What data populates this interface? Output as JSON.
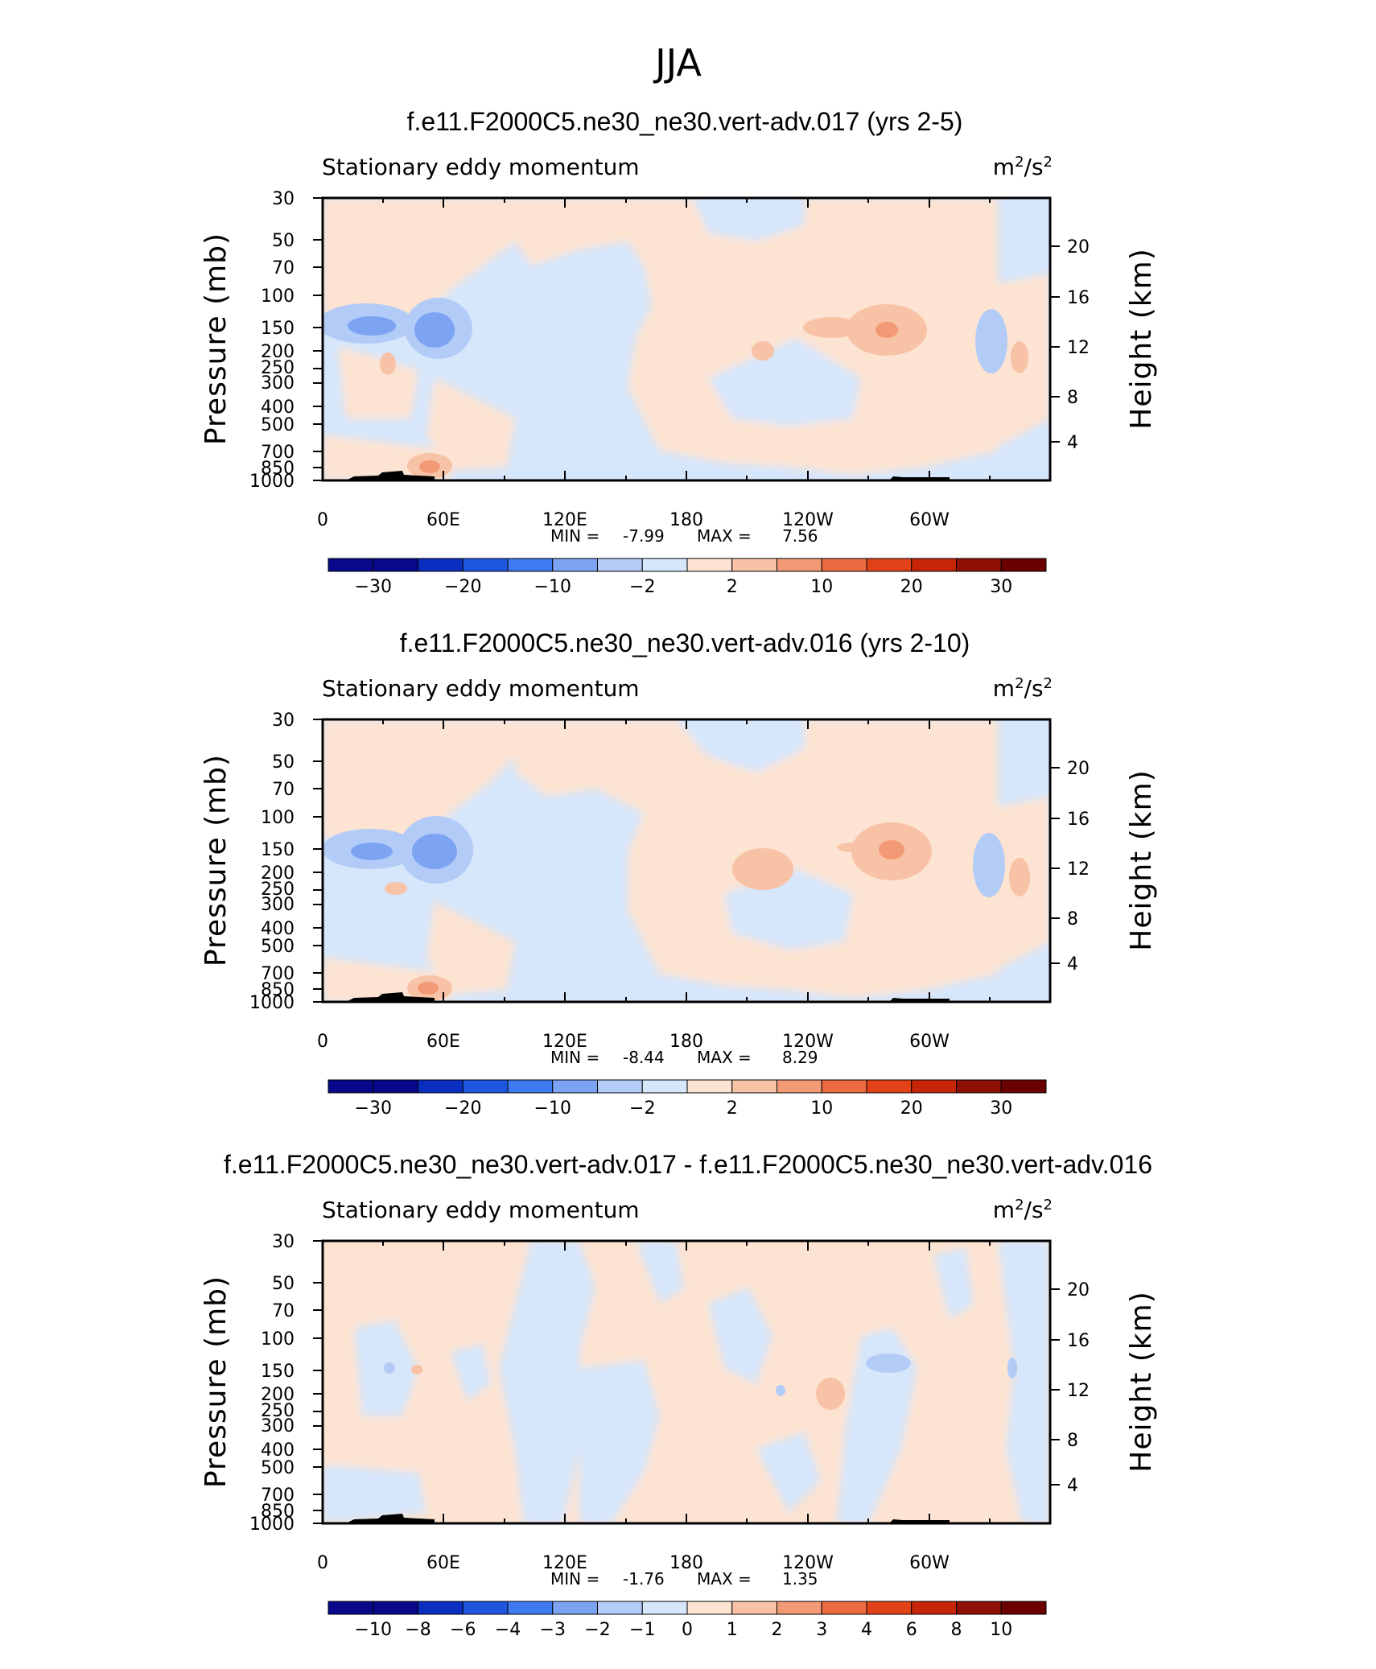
{
  "figure_title": "JJA",
  "colors": {
    "divergent_palette": [
      "#08088b",
      "#0a2ec0",
      "#1e56e0",
      "#3f7bf0",
      "#7da3f3",
      "#b3ccf7",
      "#d6e6fb",
      "#fde3d2",
      "#f8c2a6",
      "#f29a75",
      "#ec6b41",
      "#e14218",
      "#c62607",
      "#8e0f04",
      "#6b0000"
    ],
    "terrain": "#000000"
  },
  "panels": [
    {
      "experiment_title": "f.e11.F2000C5.ne30_ne30.vert-adv.017 (yrs 2-5)",
      "left_string": "Stationary eddy momentum",
      "units": {
        "base": "m",
        "sup1": "2",
        "mid": "/s",
        "sup2": "2"
      },
      "min_label": "MIN =",
      "min_value": "-7.99",
      "max_label": "MAX =",
      "max_value": "7.56",
      "colorbar_labels": [
        "-30",
        "-20",
        "-10",
        "-2",
        "2",
        "10",
        "20",
        "30"
      ]
    },
    {
      "experiment_title": "f.e11.F2000C5.ne30_ne30.vert-adv.016 (yrs 2-10)",
      "left_string": "Stationary eddy momentum",
      "units": {
        "base": "m",
        "sup1": "2",
        "mid": "/s",
        "sup2": "2"
      },
      "min_label": "MIN =",
      "min_value": "-8.44",
      "max_label": "MAX =",
      "max_value": "8.29",
      "colorbar_labels": [
        "-30",
        "-20",
        "-10",
        "-2",
        "2",
        "10",
        "20",
        "30"
      ]
    },
    {
      "experiment_title": "f.e11.F2000C5.ne30_ne30.vert-adv.017 - f.e11.F2000C5.ne30_ne30.vert-adv.016",
      "left_string": "Stationary eddy momentum",
      "units": {
        "base": "m",
        "sup1": "2",
        "mid": "/s",
        "sup2": "2"
      },
      "min_label": "MIN =",
      "min_value": "-1.76",
      "max_label": "MAX =",
      "max_value": "1.35",
      "colorbar_labels": [
        "-10",
        "-8",
        "-6",
        "-4",
        "-3",
        "-2",
        "-1",
        "0",
        "1",
        "2",
        "3",
        "4",
        "6",
        "8",
        "10"
      ]
    }
  ],
  "chart_data": {
    "type": "heatmap",
    "description_kind": "longitude-pressure cross section",
    "x_ticks": [
      "0",
      "60E",
      "120E",
      "180",
      "120W",
      "60W"
    ],
    "x_range_deg": [
      0,
      360
    ],
    "y_label": "Pressure (mb)",
    "y_ticks": [
      "30",
      "50",
      "70",
      "100",
      "150",
      "200",
      "250",
      "300",
      "400",
      "500",
      "700",
      "850",
      "1000"
    ],
    "y_scale": "log",
    "y_range_mb": [
      1000,
      30
    ],
    "y2_label": "Height (km)",
    "y2_ticks": [
      "20",
      "16",
      "12",
      "8",
      "4"
    ],
    "features": [
      {
        "panel": 0,
        "sign": "negative",
        "lon": 55,
        "p": 155,
        "level": 3
      },
      {
        "panel": 0,
        "sign": "negative",
        "lon": 23,
        "p": 150,
        "level": 2
      },
      {
        "panel": 0,
        "sign": "positive",
        "lon": 275,
        "p": 160,
        "level": 3
      },
      {
        "panel": 0,
        "sign": "positive",
        "lon": 210,
        "p": 190,
        "level": 2
      },
      {
        "panel": 0,
        "sign": "positive",
        "lon": 52,
        "p": 870,
        "level": 3
      },
      {
        "panel": 1,
        "sign": "negative",
        "lon": 55,
        "p": 155,
        "level": 3
      },
      {
        "panel": 1,
        "sign": "positive",
        "lon": 280,
        "p": 160,
        "level": 3
      },
      {
        "panel": 1,
        "sign": "positive",
        "lon": 222,
        "p": 190,
        "level": 2
      },
      {
        "panel": 1,
        "sign": "positive",
        "lon": 52,
        "p": 870,
        "level": 3
      },
      {
        "panel": 2,
        "sign": "positive",
        "lon": 252,
        "p": 200,
        "level": 2
      },
      {
        "panel": 2,
        "sign": "negative",
        "lon": 290,
        "p": 140,
        "level": 2
      }
    ]
  }
}
